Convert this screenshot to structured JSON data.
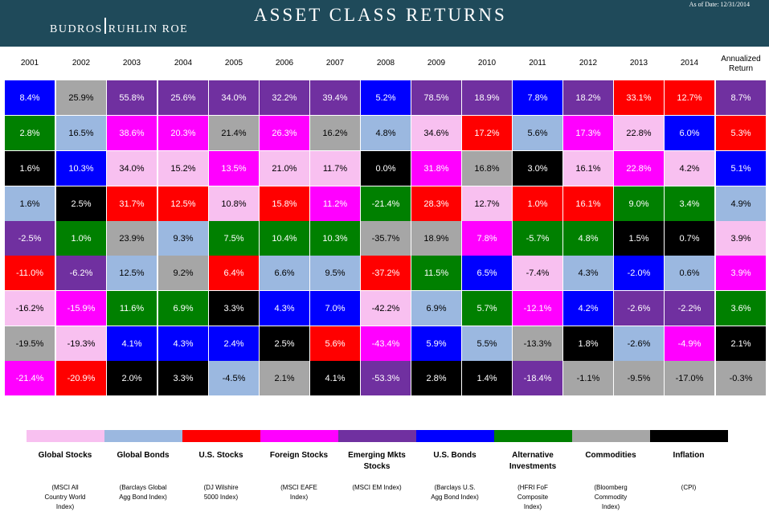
{
  "header": {
    "logo_left": "BUDROS",
    "logo_right": "RUHLIN ROE",
    "title": "ASSET CLASS RETURNS",
    "as_of": "As of Date: 12/31/2014"
  },
  "chart_data": {
    "type": "table",
    "title": "ASSET CLASS RETURNS",
    "columns": [
      "2001",
      "2002",
      "2003",
      "2004",
      "2005",
      "2006",
      "2007",
      "2008",
      "2009",
      "2010",
      "2011",
      "2012",
      "2013",
      "2014",
      "Annualized Return"
    ],
    "annualized_label_line1": "Annualized",
    "annualized_label_line2": "Return",
    "asset_classes": {
      "GS": {
        "name": "Global Stocks",
        "index": "(MSCI All Country World Index)",
        "color": "#f8c0f0"
      },
      "GB": {
        "name": "Global Bonds",
        "index": "(Barclays Global Agg Bond Index)",
        "color": "#9bb8e0"
      },
      "US": {
        "name": "U.S. Stocks",
        "index": "(DJ Wilshire 5000 Index)",
        "color": "#ff0000"
      },
      "FS": {
        "name": "Foreign Stocks",
        "index": "(MSCI EAFE Index)",
        "color": "#ff00ff"
      },
      "EM": {
        "name": "Emerging Mkts Stocks",
        "index": "(MSCI EM Index)",
        "color": "#7030a0"
      },
      "UB": {
        "name": "U.S. Bonds",
        "index": "(Barclays U.S. Agg Bond Index)",
        "color": "#0000ff"
      },
      "AI": {
        "name": "Alternative Investments",
        "index": "(HFRI FoF Composite Index)",
        "color": "#008000"
      },
      "CO": {
        "name": "Commodities",
        "index": "(Bloomberg Commodity Index)",
        "color": "#a6a6a6"
      },
      "IN": {
        "name": "Inflation",
        "index": "(CPI)",
        "color": "#000000"
      }
    },
    "legend_order": [
      "GS",
      "GB",
      "US",
      "FS",
      "EM",
      "UB",
      "AI",
      "CO",
      "IN"
    ],
    "legend_label_lines": [
      [
        "Global Stocks"
      ],
      [
        "Global Bonds"
      ],
      [
        "U.S. Stocks"
      ],
      [
        "Foreign Stocks"
      ],
      [
        "Emerging Mkts",
        "Stocks"
      ],
      [
        "U.S. Bonds"
      ],
      [
        "Alternative",
        "Investments"
      ],
      [
        "Commodities"
      ],
      [
        "Inflation"
      ]
    ],
    "legend_index_lines": [
      [
        "(MSCI All",
        "Country World",
        "Index)"
      ],
      [
        "(Barclays Global",
        "Agg Bond Index)"
      ],
      [
        "(DJ Wilshire",
        "5000 Index)"
      ],
      [
        "(MSCI EAFE",
        "Index)"
      ],
      [
        "(MSCI EM Index)"
      ],
      [
        "(Barclays U.S.",
        "Agg Bond Index)"
      ],
      [
        "(HFRI FoF",
        "Composite",
        "Index)"
      ],
      [
        "(Bloomberg",
        "Commodity",
        "Index)"
      ],
      [
        "(CPI)"
      ]
    ],
    "grid": [
      [
        {
          "a": "UB",
          "v": "8.4%"
        },
        {
          "a": "CO",
          "v": "25.9%"
        },
        {
          "a": "EM",
          "v": "55.8%"
        },
        {
          "a": "EM",
          "v": "25.6%"
        },
        {
          "a": "EM",
          "v": "34.0%"
        },
        {
          "a": "EM",
          "v": "32.2%"
        },
        {
          "a": "EM",
          "v": "39.4%"
        },
        {
          "a": "UB",
          "v": "5.2%"
        },
        {
          "a": "EM",
          "v": "78.5%"
        },
        {
          "a": "EM",
          "v": "18.9%"
        },
        {
          "a": "UB",
          "v": "7.8%"
        },
        {
          "a": "EM",
          "v": "18.2%"
        },
        {
          "a": "US",
          "v": "33.1%"
        },
        {
          "a": "US",
          "v": "12.7%"
        },
        {
          "a": "EM",
          "v": "8.7%"
        }
      ],
      [
        {
          "a": "AI",
          "v": "2.8%"
        },
        {
          "a": "GB",
          "v": "16.5%"
        },
        {
          "a": "FS",
          "v": "38.6%"
        },
        {
          "a": "FS",
          "v": "20.3%"
        },
        {
          "a": "CO",
          "v": "21.4%"
        },
        {
          "a": "FS",
          "v": "26.3%"
        },
        {
          "a": "CO",
          "v": "16.2%"
        },
        {
          "a": "GB",
          "v": "4.8%"
        },
        {
          "a": "GS",
          "v": "34.6%"
        },
        {
          "a": "US",
          "v": "17.2%"
        },
        {
          "a": "GB",
          "v": "5.6%"
        },
        {
          "a": "FS",
          "v": "17.3%"
        },
        {
          "a": "GS",
          "v": "22.8%"
        },
        {
          "a": "UB",
          "v": "6.0%"
        },
        {
          "a": "US",
          "v": "5.3%"
        }
      ],
      [
        {
          "a": "IN",
          "v": "1.6%"
        },
        {
          "a": "UB",
          "v": "10.3%"
        },
        {
          "a": "GS",
          "v": "34.0%"
        },
        {
          "a": "GS",
          "v": "15.2%"
        },
        {
          "a": "FS",
          "v": "13.5%"
        },
        {
          "a": "GS",
          "v": "21.0%"
        },
        {
          "a": "GS",
          "v": "11.7%"
        },
        {
          "a": "IN",
          "v": "0.0%"
        },
        {
          "a": "FS",
          "v": "31.8%"
        },
        {
          "a": "CO",
          "v": "16.8%"
        },
        {
          "a": "IN",
          "v": "3.0%"
        },
        {
          "a": "GS",
          "v": "16.1%"
        },
        {
          "a": "FS",
          "v": "22.8%"
        },
        {
          "a": "GS",
          "v": "4.2%"
        },
        {
          "a": "UB",
          "v": "5.1%"
        }
      ],
      [
        {
          "a": "GB",
          "v": "1.6%"
        },
        {
          "a": "IN",
          "v": "2.5%"
        },
        {
          "a": "US",
          "v": "31.7%"
        },
        {
          "a": "US",
          "v": "12.5%"
        },
        {
          "a": "GS",
          "v": "10.8%"
        },
        {
          "a": "US",
          "v": "15.8%"
        },
        {
          "a": "FS",
          "v": "11.2%"
        },
        {
          "a": "AI",
          "v": "-21.4%"
        },
        {
          "a": "US",
          "v": "28.3%"
        },
        {
          "a": "GS",
          "v": "12.7%"
        },
        {
          "a": "US",
          "v": "1.0%"
        },
        {
          "a": "US",
          "v": "16.1%"
        },
        {
          "a": "AI",
          "v": "9.0%"
        },
        {
          "a": "AI",
          "v": "3.4%"
        },
        {
          "a": "GB",
          "v": "4.9%"
        }
      ],
      [
        {
          "a": "EM",
          "v": "-2.5%"
        },
        {
          "a": "AI",
          "v": "1.0%"
        },
        {
          "a": "CO",
          "v": "23.9%"
        },
        {
          "a": "GB",
          "v": "9.3%"
        },
        {
          "a": "AI",
          "v": "7.5%"
        },
        {
          "a": "AI",
          "v": "10.4%"
        },
        {
          "a": "AI",
          "v": "10.3%"
        },
        {
          "a": "CO",
          "v": "-35.7%"
        },
        {
          "a": "CO",
          "v": "18.9%"
        },
        {
          "a": "FS",
          "v": "7.8%"
        },
        {
          "a": "AI",
          "v": "-5.7%"
        },
        {
          "a": "AI",
          "v": "4.8%"
        },
        {
          "a": "IN",
          "v": "1.5%"
        },
        {
          "a": "IN",
          "v": "0.7%"
        },
        {
          "a": "GS",
          "v": "3.9%"
        }
      ],
      [
        {
          "a": "US",
          "v": "-11.0%"
        },
        {
          "a": "EM",
          "v": "-6.2%"
        },
        {
          "a": "GB",
          "v": "12.5%"
        },
        {
          "a": "CO",
          "v": "9.2%"
        },
        {
          "a": "US",
          "v": "6.4%"
        },
        {
          "a": "GB",
          "v": "6.6%"
        },
        {
          "a": "GB",
          "v": "9.5%"
        },
        {
          "a": "US",
          "v": "-37.2%"
        },
        {
          "a": "AI",
          "v": "11.5%"
        },
        {
          "a": "UB",
          "v": "6.5%"
        },
        {
          "a": "GS",
          "v": "-7.4%"
        },
        {
          "a": "GB",
          "v": "4.3%"
        },
        {
          "a": "UB",
          "v": "-2.0%"
        },
        {
          "a": "GB",
          "v": "0.6%"
        },
        {
          "a": "FS",
          "v": "3.9%"
        }
      ],
      [
        {
          "a": "GS",
          "v": "-16.2%"
        },
        {
          "a": "FS",
          "v": "-15.9%"
        },
        {
          "a": "AI",
          "v": "11.6%"
        },
        {
          "a": "AI",
          "v": "6.9%"
        },
        {
          "a": "IN",
          "v": "3.3%"
        },
        {
          "a": "UB",
          "v": "4.3%"
        },
        {
          "a": "UB",
          "v": "7.0%"
        },
        {
          "a": "GS",
          "v": "-42.2%"
        },
        {
          "a": "GB",
          "v": "6.9%"
        },
        {
          "a": "AI",
          "v": "5.7%"
        },
        {
          "a": "FS",
          "v": "-12.1%"
        },
        {
          "a": "UB",
          "v": "4.2%"
        },
        {
          "a": "EM",
          "v": "-2.6%"
        },
        {
          "a": "EM",
          "v": "-2.2%"
        },
        {
          "a": "AI",
          "v": "3.6%"
        }
      ],
      [
        {
          "a": "CO",
          "v": "-19.5%"
        },
        {
          "a": "GS",
          "v": "-19.3%"
        },
        {
          "a": "UB",
          "v": "4.1%"
        },
        {
          "a": "UB",
          "v": "4.3%"
        },
        {
          "a": "UB",
          "v": "2.4%"
        },
        {
          "a": "IN",
          "v": "2.5%"
        },
        {
          "a": "US",
          "v": "5.6%"
        },
        {
          "a": "FS",
          "v": "-43.4%"
        },
        {
          "a": "UB",
          "v": "5.9%"
        },
        {
          "a": "GB",
          "v": "5.5%"
        },
        {
          "a": "CO",
          "v": "-13.3%"
        },
        {
          "a": "IN",
          "v": "1.8%"
        },
        {
          "a": "GB",
          "v": "-2.6%"
        },
        {
          "a": "FS",
          "v": "-4.9%"
        },
        {
          "a": "IN",
          "v": "2.1%"
        }
      ],
      [
        {
          "a": "FS",
          "v": "-21.4%"
        },
        {
          "a": "US",
          "v": "-20.9%"
        },
        {
          "a": "IN",
          "v": "2.0%"
        },
        {
          "a": "IN",
          "v": "3.3%"
        },
        {
          "a": "GB",
          "v": "-4.5%"
        },
        {
          "a": "CO",
          "v": "2.1%"
        },
        {
          "a": "IN",
          "v": "4.1%"
        },
        {
          "a": "EM",
          "v": "-53.3%"
        },
        {
          "a": "IN",
          "v": "2.8%"
        },
        {
          "a": "IN",
          "v": "1.4%"
        },
        {
          "a": "EM",
          "v": "-18.4%"
        },
        {
          "a": "CO",
          "v": "-1.1%"
        },
        {
          "a": "CO",
          "v": "-9.5%"
        },
        {
          "a": "CO",
          "v": "-17.0%"
        },
        {
          "a": "CO",
          "v": "-0.3%"
        }
      ]
    ]
  }
}
